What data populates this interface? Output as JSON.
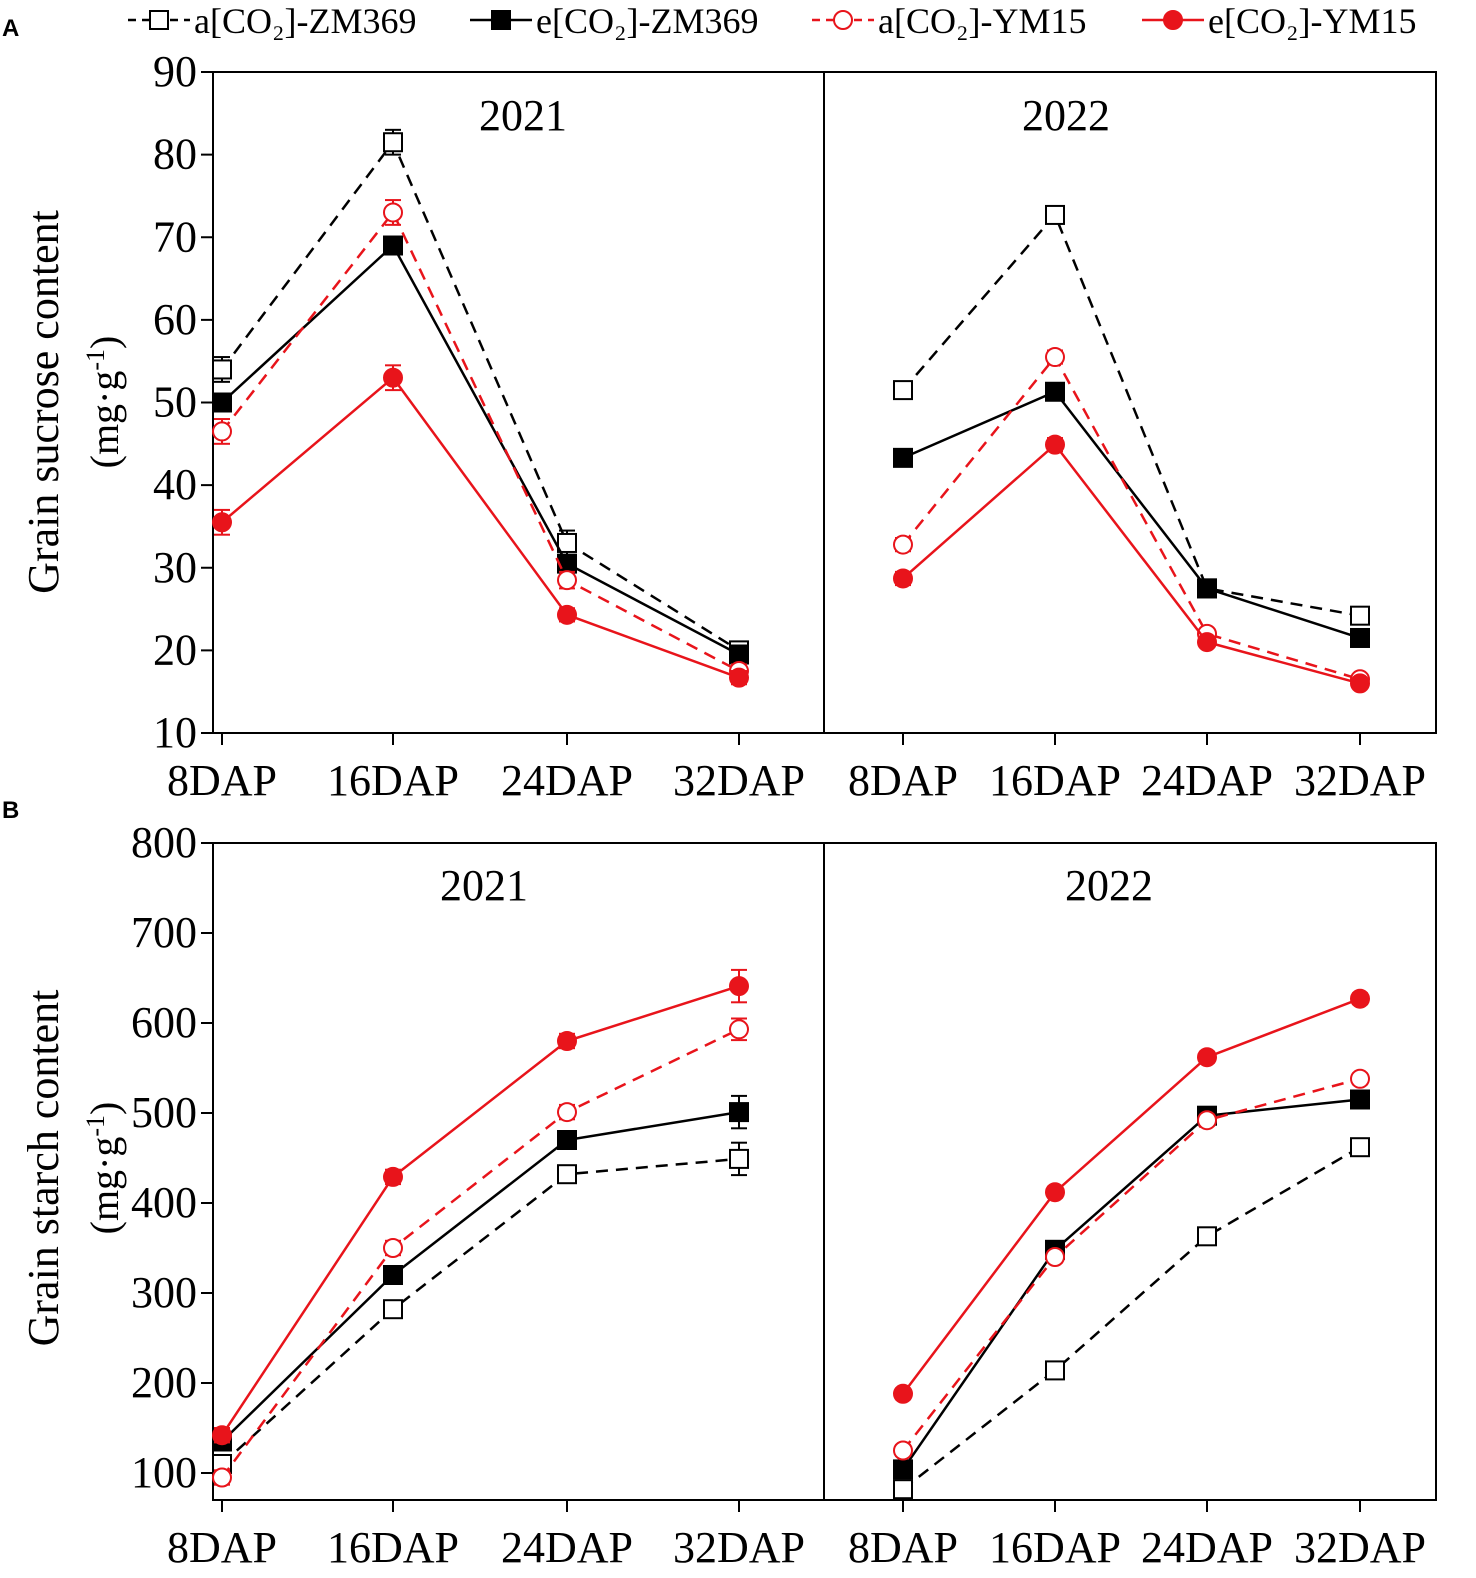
{
  "legend": {
    "entries": [
      {
        "label": "a[CO₂]-ZM369",
        "color": "#000000",
        "dashed": true,
        "marker": "square",
        "filled": false
      },
      {
        "label": "e[CO₂]-ZM369",
        "color": "#000000",
        "dashed": false,
        "marker": "square",
        "filled": true
      },
      {
        "label": "a[CO₂]-YM15",
        "color": "#e8141b",
        "dashed": true,
        "marker": "circle",
        "filled": false
      },
      {
        "label": "e[CO₂]-YM15",
        "color": "#e8141b",
        "dashed": false,
        "marker": "circle",
        "filled": true
      }
    ]
  },
  "colors": {
    "black": "#000000",
    "red": "#e8141b"
  },
  "chart_data": [
    {
      "panel_label": "A",
      "type": "line",
      "ylabel": "Grain sucrose content",
      "yunit_base": "(mg·g",
      "yunit_sup": "-1",
      "yunit_close": ")",
      "ylim": [
        10,
        90
      ],
      "yticks": [
        "10",
        "20",
        "30",
        "40",
        "50",
        "60",
        "70",
        "80",
        "90"
      ],
      "categories": [
        "8DAP",
        "16DAP",
        "24DAP",
        "32DAP"
      ],
      "subplots": [
        {
          "title": "2021",
          "series": [
            {
              "name": "a[CO₂]-ZM369",
              "values": [
                54.0,
                81.5,
                33.0,
                20.0
              ],
              "errors": [
                1.5,
                1.5,
                1.5,
                0.8
              ]
            },
            {
              "name": "e[CO₂]-ZM369",
              "values": [
                50.0,
                69.0,
                30.5,
                19.5
              ],
              "errors": [
                1.0,
                1.0,
                1.0,
                0.8
              ]
            },
            {
              "name": "a[CO₂]-YM15",
              "values": [
                46.5,
                73.0,
                28.5,
                17.5
              ],
              "errors": [
                1.5,
                1.5,
                1.0,
                0.8
              ]
            },
            {
              "name": "e[CO₂]-YM15",
              "values": [
                35.5,
                53.0,
                24.3,
                16.7
              ],
              "errors": [
                1.5,
                1.5,
                0.8,
                0.8
              ]
            }
          ]
        },
        {
          "title": "2022",
          "series": [
            {
              "name": "a[CO₂]-ZM369",
              "values": [
                51.5,
                72.7,
                27.5,
                24.2
              ],
              "errors": [
                0.8,
                0.8,
                0.6,
                0.6
              ]
            },
            {
              "name": "e[CO₂]-ZM369",
              "values": [
                43.3,
                51.3,
                27.5,
                21.5
              ],
              "errors": [
                0.8,
                0.8,
                0.6,
                0.6
              ]
            },
            {
              "name": "a[CO₂]-YM15",
              "values": [
                32.8,
                55.5,
                22.0,
                16.5
              ],
              "errors": [
                0.8,
                0.8,
                0.6,
                0.6
              ]
            },
            {
              "name": "e[CO₂]-YM15",
              "values": [
                28.7,
                44.9,
                21.0,
                16.0
              ],
              "errors": [
                0.8,
                0.8,
                0.6,
                0.6
              ]
            }
          ]
        }
      ]
    },
    {
      "panel_label": "B",
      "type": "line",
      "ylabel": "Grain starch content",
      "yunit_base": "(mg·g",
      "yunit_sup": "-1",
      "yunit_close": ")",
      "ylim": [
        70,
        800
      ],
      "yticks": [
        "100",
        "200",
        "300",
        "400",
        "500",
        "600",
        "700",
        "800"
      ],
      "categories": [
        "8DAP",
        "16DAP",
        "24DAP",
        "32DAP"
      ],
      "subplots": [
        {
          "title": "2021",
          "series": [
            {
              "name": "a[CO₂]-ZM369",
              "values": [
                110,
                282,
                432,
                449
              ],
              "errors": [
                8,
                8,
                8,
                18
              ]
            },
            {
              "name": "e[CO₂]-ZM369",
              "values": [
                135,
                320,
                470,
                501
              ],
              "errors": [
                8,
                8,
                8,
                18
              ]
            },
            {
              "name": "a[CO₂]-YM15",
              "values": [
                95,
                350,
                501,
                593
              ],
              "errors": [
                8,
                8,
                8,
                12
              ]
            },
            {
              "name": "e[CO₂]-YM15",
              "values": [
                142,
                429,
                580,
                641
              ],
              "errors": [
                8,
                8,
                8,
                18
              ]
            }
          ]
        },
        {
          "title": "2022",
          "series": [
            {
              "name": "a[CO₂]-ZM369",
              "values": [
                82,
                214,
                363,
                462
              ],
              "errors": [
                6,
                6,
                6,
                6
              ]
            },
            {
              "name": "e[CO₂]-ZM369",
              "values": [
                104,
                348,
                497,
                515
              ],
              "errors": [
                6,
                6,
                6,
                6
              ]
            },
            {
              "name": "a[CO₂]-YM15",
              "values": [
                125,
                340,
                492,
                538
              ],
              "errors": [
                6,
                6,
                6,
                6
              ]
            },
            {
              "name": "e[CO₂]-YM15",
              "values": [
                188,
                412,
                562,
                627
              ],
              "errors": [
                6,
                6,
                6,
                6
              ]
            }
          ]
        }
      ]
    }
  ]
}
